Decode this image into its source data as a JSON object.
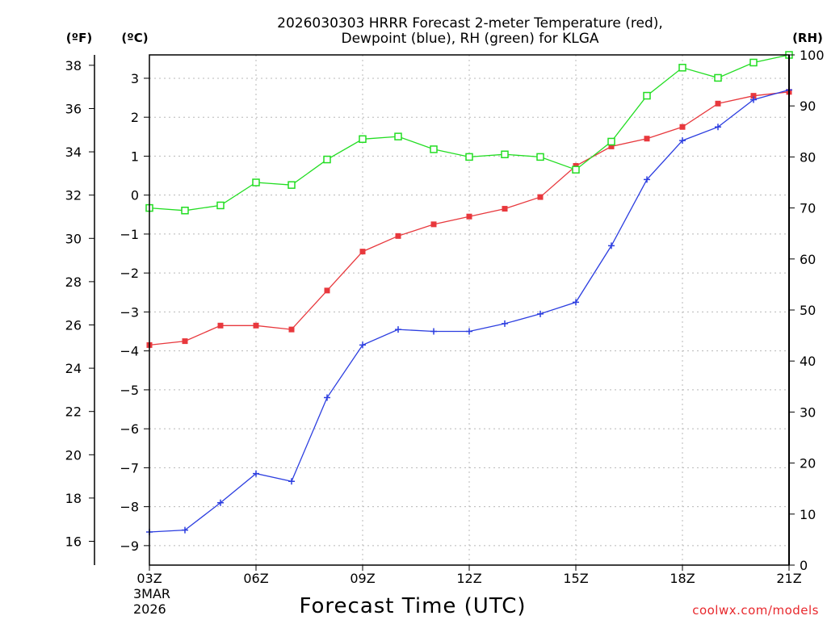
{
  "chart_data": {
    "type": "line",
    "title_line1": "2026030303 HRRR Forecast 2-meter Temperature (red),",
    "title_line2": "Dewpoint (blue), RH (green) for KLGA",
    "xlabel": "Forecast Time (UTC)",
    "credit": "coolwx.com/models",
    "units": {
      "fahrenheit": "(ºF)",
      "celsius": "(ºC)",
      "rh": "(RH)"
    },
    "x_hours": [
      3,
      4,
      5,
      6,
      7,
      8,
      9,
      10,
      11,
      12,
      13,
      14,
      15,
      16,
      17,
      18,
      19,
      20,
      21
    ],
    "x_ticks": [
      {
        "hour": 3,
        "label": "03Z"
      },
      {
        "hour": 6,
        "label": "06Z"
      },
      {
        "hour": 9,
        "label": "09Z"
      },
      {
        "hour": 12,
        "label": "12Z"
      },
      {
        "hour": 15,
        "label": "15Z"
      },
      {
        "hour": 18,
        "label": "18Z"
      },
      {
        "hour": 21,
        "label": "21Z"
      }
    ],
    "x_date_lines": [
      "3MAR",
      "2026"
    ],
    "xlim": [
      3,
      21
    ],
    "celsius_range": [
      -9.5,
      3.6
    ],
    "rh_range": [
      0,
      100
    ],
    "yticks_c": [
      "3",
      "2",
      "1",
      "0",
      "−1",
      "−2",
      "−3",
      "−4",
      "−5",
      "−6",
      "−7",
      "−8",
      "−9"
    ],
    "yticks_f": [
      "38",
      "36",
      "34",
      "32",
      "30",
      "28",
      "26",
      "24",
      "22",
      "20",
      "18",
      "16"
    ],
    "yticks_rh": [
      "100",
      "90",
      "80",
      "70",
      "60",
      "50",
      "40",
      "30",
      "20",
      "10",
      "0"
    ],
    "grid": true,
    "series": [
      {
        "name": "Temperature",
        "color": "#e8383d",
        "marker": "square-filled",
        "axis": "celsius",
        "values": [
          -3.85,
          -3.75,
          -3.35,
          -3.35,
          -3.45,
          -2.45,
          -1.45,
          -1.05,
          -0.75,
          -0.55,
          -0.35,
          -0.05,
          0.75,
          1.25,
          1.45,
          1.75,
          2.35,
          2.55,
          2.65
        ]
      },
      {
        "name": "Dewpoint",
        "color": "#2c3ee0",
        "marker": "plus",
        "axis": "celsius",
        "values": [
          -8.65,
          -8.6,
          -7.9,
          -7.15,
          -7.35,
          -5.2,
          -3.85,
          -3.45,
          -3.5,
          -3.5,
          -3.3,
          -3.05,
          -2.75,
          -1.3,
          0.4,
          1.4,
          1.75,
          2.45,
          2.7
        ]
      },
      {
        "name": "RH",
        "color": "#22dd22",
        "marker": "square-open",
        "axis": "rh",
        "values": [
          70,
          69.5,
          70.5,
          75,
          74.5,
          79.5,
          83.5,
          84,
          81.5,
          80,
          80.5,
          80,
          77.5,
          83,
          92,
          97.5,
          95.5,
          98.5,
          100
        ]
      }
    ]
  }
}
